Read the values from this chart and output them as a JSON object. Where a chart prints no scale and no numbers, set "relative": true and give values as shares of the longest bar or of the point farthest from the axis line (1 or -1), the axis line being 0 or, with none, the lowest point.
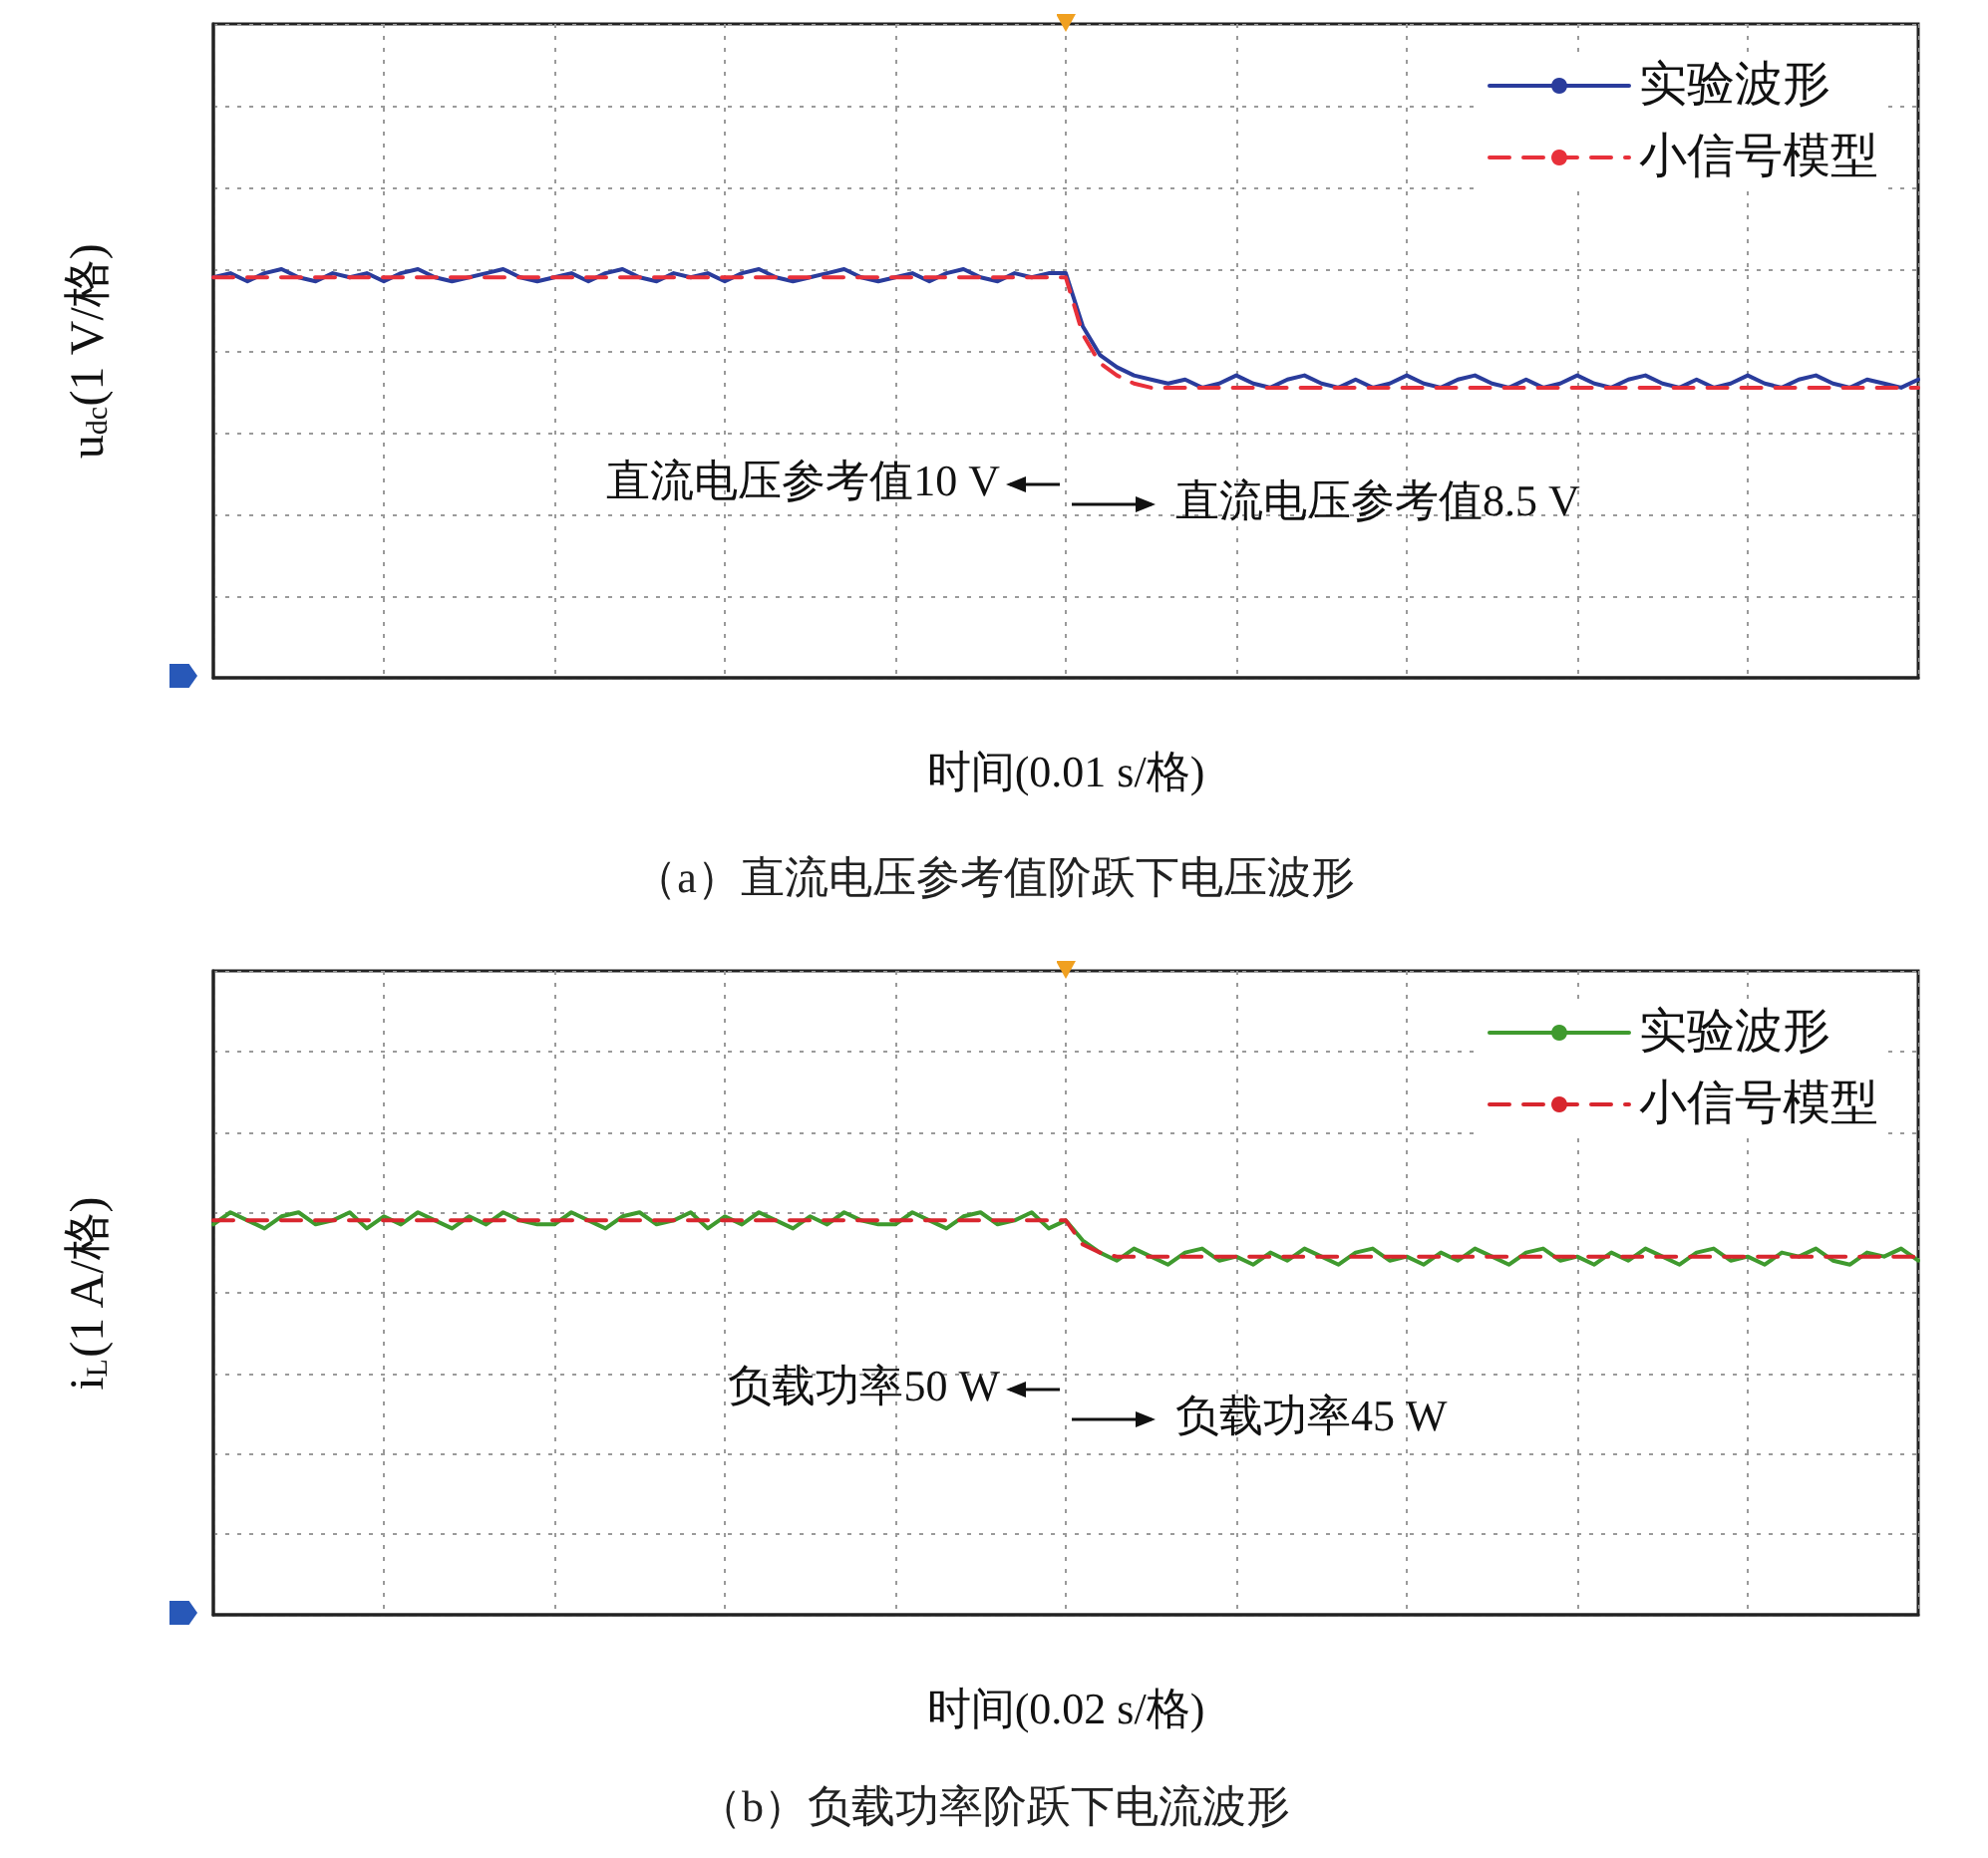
{
  "chart_data": [
    {
      "type": "line",
      "relative": true,
      "title": "（a）直流电压参考值阶跃下电压波形",
      "xlabel": "时间(0.01 s/格)",
      "ylabel": "u$_{dc}$(1 V/格)",
      "legend": "top right",
      "grid": true,
      "annotations": [
        "直流电压参考值10 V",
        "直流电压参考值8.5 V"
      ],
      "categories": [
        null,
        null,
        null,
        null,
        null,
        null,
        null,
        null,
        null,
        null,
        null,
        null,
        null,
        null,
        null,
        null,
        null,
        null,
        null,
        null,
        null,
        null,
        null,
        null,
        null,
        null,
        null,
        null,
        null,
        null,
        null,
        null,
        null,
        null,
        null,
        null,
        null,
        null,
        null,
        null,
        null,
        null,
        null,
        null,
        null,
        null,
        null,
        null,
        null,
        null,
        null,
        null,
        null,
        null,
        null,
        null,
        null,
        null,
        null,
        null,
        null,
        null,
        null,
        null,
        null,
        null,
        null,
        null,
        null,
        null,
        null,
        null,
        null,
        null,
        null,
        null,
        null,
        null,
        null,
        null,
        null,
        null,
        null,
        null,
        null,
        null,
        null,
        null,
        null,
        null,
        null,
        null,
        null,
        null,
        null,
        null,
        null,
        null,
        null,
        null,
        null
      ],
      "series": [
        {
          "name": "实验波形",
          "color": "#2a3c9c",
          "line_style": "solid",
          "values": [
            0.98,
            0.99,
            0.97,
            0.99,
            1.0,
            0.98,
            0.97,
            0.99,
            0.98,
            0.99,
            0.97,
            0.99,
            1.0,
            0.98,
            0.97,
            0.98,
            0.99,
            1.0,
            0.98,
            0.97,
            0.98,
            0.99,
            0.97,
            0.99,
            1.0,
            0.98,
            0.97,
            0.99,
            0.98,
            0.99,
            0.97,
            0.99,
            1.0,
            0.98,
            0.97,
            0.98,
            0.99,
            1.0,
            0.98,
            0.97,
            0.98,
            0.99,
            0.97,
            0.99,
            1.0,
            0.98,
            0.97,
            0.99,
            0.98,
            0.99,
            0.99,
            0.86,
            0.79,
            0.76,
            0.74,
            0.73,
            0.72,
            0.73,
            0.71,
            0.72,
            0.74,
            0.72,
            0.71,
            0.73,
            0.74,
            0.72,
            0.71,
            0.73,
            0.71,
            0.72,
            0.74,
            0.72,
            0.71,
            0.73,
            0.74,
            0.72,
            0.71,
            0.73,
            0.71,
            0.72,
            0.74,
            0.72,
            0.71,
            0.73,
            0.74,
            0.72,
            0.71,
            0.73,
            0.71,
            0.72,
            0.74,
            0.72,
            0.71,
            0.73,
            0.74,
            0.72,
            0.71,
            0.73,
            0.72,
            0.71,
            0.73
          ]
        },
        {
          "name": "小信号模型",
          "color": "#e8303a",
          "line_style": "dashed",
          "values": [
            0.98,
            0.98,
            0.98,
            0.98,
            0.98,
            0.98,
            0.98,
            0.98,
            0.98,
            0.98,
            0.98,
            0.98,
            0.98,
            0.98,
            0.98,
            0.98,
            0.98,
            0.98,
            0.98,
            0.98,
            0.98,
            0.98,
            0.98,
            0.98,
            0.98,
            0.98,
            0.98,
            0.98,
            0.98,
            0.98,
            0.98,
            0.98,
            0.98,
            0.98,
            0.98,
            0.98,
            0.98,
            0.98,
            0.98,
            0.98,
            0.98,
            0.98,
            0.98,
            0.98,
            0.98,
            0.98,
            0.98,
            0.98,
            0.98,
            0.98,
            0.98,
            0.84,
            0.77,
            0.74,
            0.72,
            0.71,
            0.71,
            0.71,
            0.71,
            0.71,
            0.71,
            0.71,
            0.71,
            0.71,
            0.71,
            0.71,
            0.71,
            0.71,
            0.71,
            0.71,
            0.71,
            0.71,
            0.71,
            0.71,
            0.71,
            0.71,
            0.71,
            0.71,
            0.71,
            0.71,
            0.71,
            0.71,
            0.71,
            0.71,
            0.71,
            0.71,
            0.71,
            0.71,
            0.71,
            0.71,
            0.71,
            0.71,
            0.71,
            0.71,
            0.71,
            0.71,
            0.71,
            0.71,
            0.71,
            0.71,
            0.71
          ]
        }
      ]
    },
    {
      "type": "line",
      "relative": true,
      "title": "（b）负载功率阶跃下电流波形",
      "xlabel": "时间(0.02 s/格)",
      "ylabel": "i$_{L}$(1 A/格)",
      "legend": "top right",
      "grid": true,
      "annotations": [
        "负载功率50 W",
        "负载功率45 W"
      ],
      "categories": [
        null,
        null,
        null,
        null,
        null,
        null,
        null,
        null,
        null,
        null,
        null,
        null,
        null,
        null,
        null,
        null,
        null,
        null,
        null,
        null,
        null,
        null,
        null,
        null,
        null,
        null,
        null,
        null,
        null,
        null,
        null,
        null,
        null,
        null,
        null,
        null,
        null,
        null,
        null,
        null,
        null,
        null,
        null,
        null,
        null,
        null,
        null,
        null,
        null,
        null,
        null,
        null,
        null,
        null,
        null,
        null,
        null,
        null,
        null,
        null,
        null,
        null,
        null,
        null,
        null,
        null,
        null,
        null,
        null,
        null,
        null,
        null,
        null,
        null,
        null,
        null,
        null,
        null,
        null,
        null,
        null,
        null,
        null,
        null,
        null,
        null,
        null,
        null,
        null,
        null,
        null,
        null,
        null,
        null,
        null,
        null,
        null,
        null,
        null,
        null,
        null
      ],
      "series": [
        {
          "name": "实验波形",
          "color": "#3f9a2e",
          "line_style": "solid",
          "values": [
            0.97,
            1.0,
            0.98,
            0.96,
            0.99,
            1.0,
            0.97,
            0.98,
            1.0,
            0.96,
            0.99,
            0.97,
            1.0,
            0.98,
            0.96,
            0.99,
            0.97,
            1.0,
            0.98,
            0.97,
            0.97,
            1.0,
            0.98,
            0.96,
            0.99,
            1.0,
            0.97,
            0.98,
            1.0,
            0.96,
            0.99,
            0.97,
            1.0,
            0.98,
            0.96,
            0.99,
            0.97,
            1.0,
            0.98,
            0.97,
            0.97,
            1.0,
            0.98,
            0.96,
            0.99,
            1.0,
            0.97,
            0.98,
            1.0,
            0.96,
            0.98,
            0.93,
            0.9,
            0.88,
            0.91,
            0.89,
            0.87,
            0.9,
            0.91,
            0.88,
            0.89,
            0.87,
            0.9,
            0.88,
            0.91,
            0.89,
            0.87,
            0.9,
            0.91,
            0.88,
            0.89,
            0.87,
            0.9,
            0.88,
            0.91,
            0.89,
            0.87,
            0.9,
            0.91,
            0.88,
            0.89,
            0.87,
            0.9,
            0.88,
            0.91,
            0.89,
            0.87,
            0.9,
            0.91,
            0.88,
            0.89,
            0.87,
            0.9,
            0.89,
            0.91,
            0.88,
            0.87,
            0.9,
            0.89,
            0.91,
            0.88
          ]
        },
        {
          "name": "小信号模型",
          "color": "#d8262e",
          "line_style": "dashed",
          "values": [
            0.98,
            0.98,
            0.98,
            0.98,
            0.98,
            0.98,
            0.98,
            0.98,
            0.98,
            0.98,
            0.98,
            0.98,
            0.98,
            0.98,
            0.98,
            0.98,
            0.98,
            0.98,
            0.98,
            0.98,
            0.98,
            0.98,
            0.98,
            0.98,
            0.98,
            0.98,
            0.98,
            0.98,
            0.98,
            0.98,
            0.98,
            0.98,
            0.98,
            0.98,
            0.98,
            0.98,
            0.98,
            0.98,
            0.98,
            0.98,
            0.98,
            0.98,
            0.98,
            0.98,
            0.98,
            0.98,
            0.98,
            0.98,
            0.98,
            0.98,
            0.98,
            0.92,
            0.9,
            0.89,
            0.89,
            0.89,
            0.89,
            0.89,
            0.89,
            0.89,
            0.89,
            0.89,
            0.89,
            0.89,
            0.89,
            0.89,
            0.89,
            0.89,
            0.89,
            0.89,
            0.89,
            0.89,
            0.89,
            0.89,
            0.89,
            0.89,
            0.89,
            0.89,
            0.89,
            0.89,
            0.89,
            0.89,
            0.89,
            0.89,
            0.89,
            0.89,
            0.89,
            0.89,
            0.89,
            0.89,
            0.89,
            0.89,
            0.89,
            0.89,
            0.89,
            0.89,
            0.89,
            0.89,
            0.89,
            0.89,
            0.89
          ]
        }
      ]
    }
  ]
}
